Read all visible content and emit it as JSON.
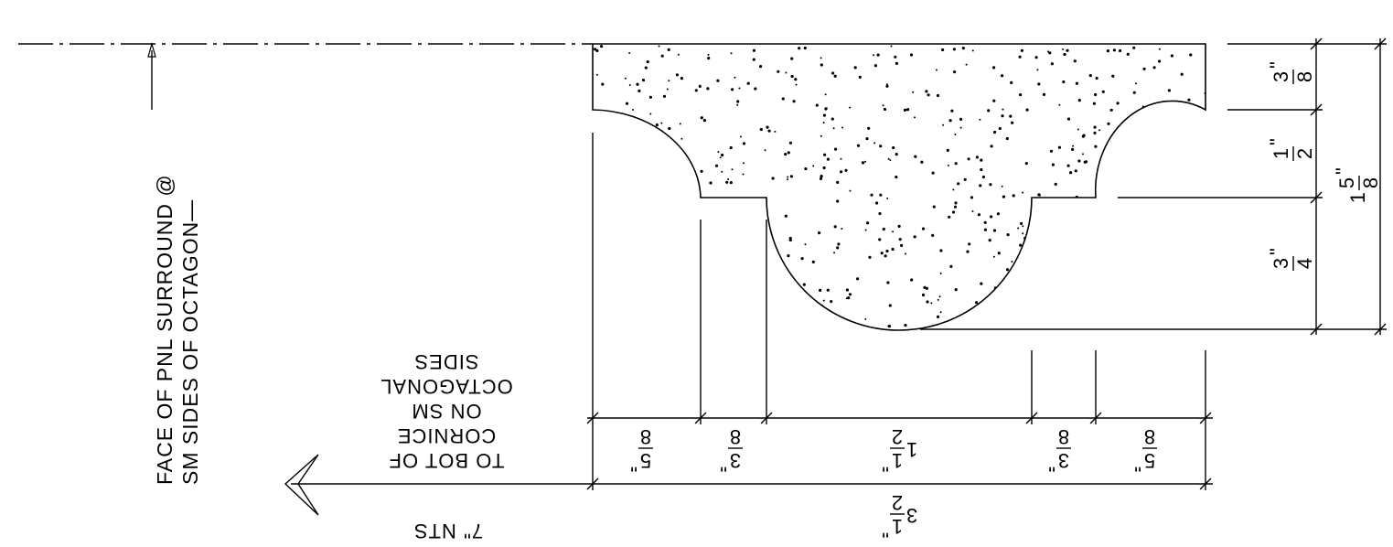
{
  "side_note": {
    "line1": "FACE OF PNL SURROUND @",
    "line2": "SM SIDES OF OCTAGON—"
  },
  "upside_note": {
    "lines": [
      "TO BOT OF",
      "CORNICE",
      "ON SM",
      "OCTAGONAL",
      "SIDES"
    ]
  },
  "upside_dim": "7\" NTS",
  "dims": {
    "right": [
      {
        "whole": "",
        "num": "3",
        "den": "8",
        "mark": "\""
      },
      {
        "whole": "",
        "num": "1",
        "den": "2",
        "mark": "\""
      },
      {
        "whole": "",
        "num": "3",
        "den": "4",
        "mark": "\""
      }
    ],
    "right_total": {
      "whole": "1",
      "num": "5",
      "den": "8",
      "mark": "\""
    },
    "bottom": [
      {
        "whole": "",
        "num": "5",
        "den": "8",
        "mark": "\""
      },
      {
        "whole": "",
        "num": "3",
        "den": "8",
        "mark": "\""
      },
      {
        "whole": "1",
        "num": "1",
        "den": "2",
        "mark": "\""
      },
      {
        "whole": "",
        "num": "3",
        "den": "8",
        "mark": "\""
      },
      {
        "whole": "",
        "num": "5",
        "den": "8",
        "mark": "\""
      }
    ],
    "bottom_total": {
      "whole": "3",
      "num": "1",
      "den": "2",
      "mark": "\""
    }
  }
}
